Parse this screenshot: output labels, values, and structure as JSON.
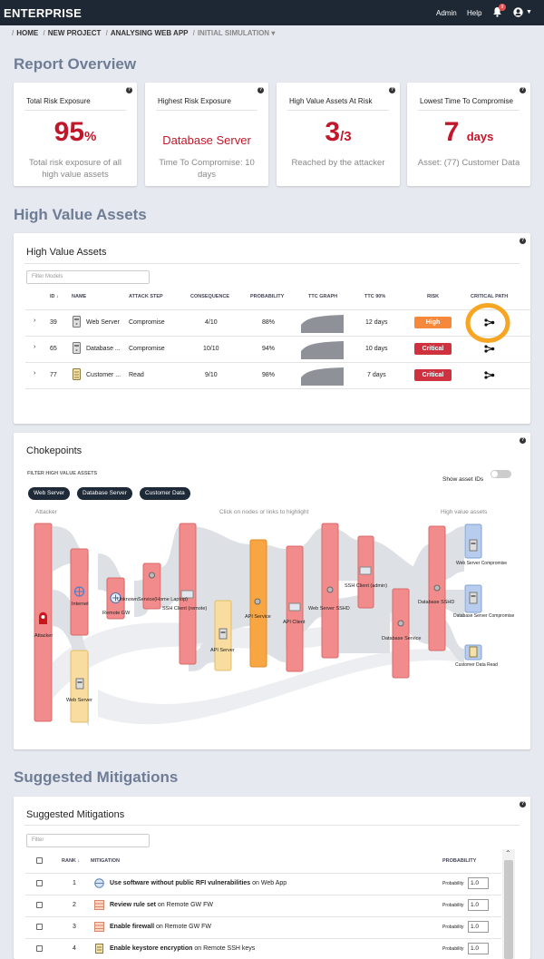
{
  "topbar": {
    "brand": "ENTERPRISE",
    "admin": "Admin",
    "help": "Help",
    "notifications": "9"
  },
  "breadcrumb": {
    "items": [
      "HOME",
      "NEW PROJECT",
      "ANALYSING WEB APP"
    ],
    "current": "INITIAL SIMULATION"
  },
  "report": {
    "title": "Report Overview"
  },
  "kpis": [
    {
      "title": "Total Risk Exposure",
      "value": "95",
      "unit": "%",
      "desc": "Total risk exposure of all high value assets"
    },
    {
      "title": "Highest Risk Exposure",
      "value": "Database Server",
      "desc": "Time To Compromise: 10 days"
    },
    {
      "title": "High Value Assets At Risk",
      "value": "3",
      "unit": "/3",
      "desc": "Reached by the attacker"
    },
    {
      "title": "Lowest Time To Compromise",
      "value": "7",
      "unit": "days",
      "desc": "Asset: (77) Customer Data"
    }
  ],
  "hva": {
    "section_title": "High Value Assets",
    "panel_title": "High Value Assets",
    "filter_placeholder": "Filter Models",
    "headers": {
      "id": "ID",
      "name": "NAME",
      "attack": "ATTACK STEP",
      "consequence": "CONSEQUENCE",
      "probability": "PROBABILITY",
      "ttc_graph": "TTC GRAPH",
      "ttc90": "TTC 90%",
      "risk": "RISK",
      "critical": "CRITICAL PATH"
    },
    "rows": [
      {
        "id": "39",
        "name": "Web Server",
        "attack": "Compromise",
        "consequence": "4/10",
        "probability": "88%",
        "ttc": "12 days",
        "risk": "High"
      },
      {
        "id": "65",
        "name": "Database ...",
        "attack": "Compromise",
        "consequence": "10/10",
        "probability": "94%",
        "ttc": "10 days",
        "risk": "Critical"
      },
      {
        "id": "77",
        "name": "Customer ...",
        "attack": "Read",
        "consequence": "9/10",
        "probability": "98%",
        "ttc": "7 days",
        "risk": "Critical"
      }
    ],
    "risk_colors": {
      "High": "#f5883a",
      "Critical": "#d0313f"
    }
  },
  "choke": {
    "title": "Chokepoints",
    "filter_label": "FILTER HIGH VALUE ASSETS",
    "show_ids": "Show asset IDs",
    "chips": [
      "Web Server",
      "Database Server",
      "Customer Data"
    ],
    "left_label": "Attacker",
    "center_label": "Click on nodes or links to highlight",
    "right_label": "High value assets",
    "nodes": {
      "attacker": "Attacker",
      "internet": "Internet",
      "webserver": "Web Server",
      "remotegw": "Remote GW",
      "unknown": "UnknownService(Home Laptop)",
      "ssh_remote": "SSH Client (remote)",
      "api_server": "API Server",
      "api_service": "API Service",
      "api_client": "API Client",
      "web_sshd": "Web Server SSHD",
      "ssh_admin": "SSH Client (admin)",
      "db_service": "Database Service",
      "db_sshd": "Database SSHD",
      "hv_web": "Web Server Compromise",
      "hv_db": "Database Server Compromise",
      "hv_cust": "Customer Data Read"
    }
  },
  "mitig": {
    "section_title": "Suggested Mitigations",
    "panel_title": "Suggested Mitigations",
    "filter_placeholder": "Filter",
    "headers": {
      "rank": "RANK",
      "mitigation": "MITIGATION",
      "probability": "PROBABILITY"
    },
    "prob_label": "Probability",
    "rows": [
      {
        "rank": "1",
        "bold": "Use software without public RFI vulnerabilities",
        "rest": " on Web App",
        "value": "1.0"
      },
      {
        "rank": "2",
        "bold": "Review rule set",
        "rest": " on Remote GW FW",
        "value": "1.0"
      },
      {
        "rank": "3",
        "bold": "Enable firewall",
        "rest": " on Remote GW FW",
        "value": "1.0"
      },
      {
        "rank": "4",
        "bold": "Enable keystore encryption",
        "rest": " on Remote SSH keys",
        "value": "1.0"
      }
    ]
  },
  "colors": {
    "critical": "#c0182a",
    "nav": "#1e2734",
    "highlight": "#f6a623"
  }
}
